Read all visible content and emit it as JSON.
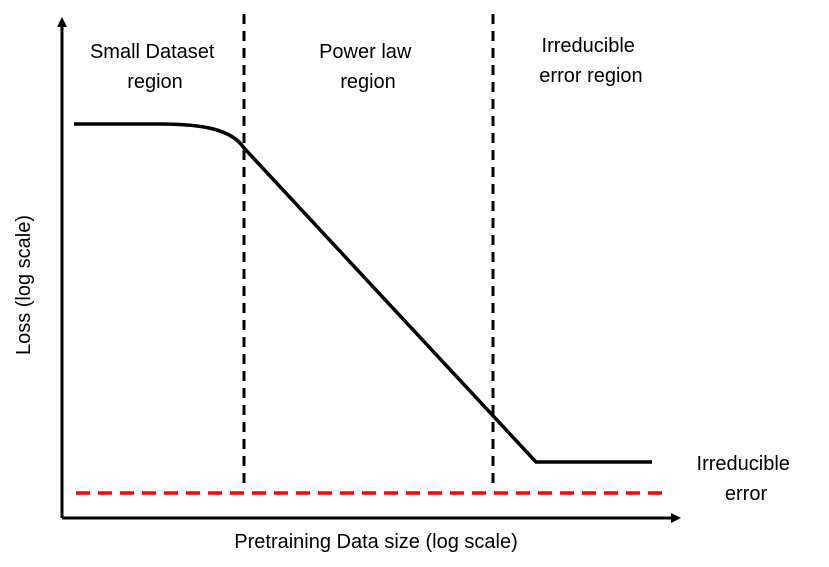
{
  "diagram": {
    "regions": [
      {
        "line1": "Small Dataset",
        "line2": "region"
      },
      {
        "line1": "Power law",
        "line2": "region"
      },
      {
        "line1": "Irreducible",
        "line2": "error region"
      }
    ],
    "irreducible_label": {
      "line1": "Irreducible",
      "line2": "error"
    },
    "xlabel": "Pretraining Data size (log scale)",
    "ylabel": "Loss (log scale)"
  },
  "colors": {
    "curve": "#000000",
    "axes": "#000000",
    "boundaries": "#000000",
    "irreducible_error_line": "#ff0000"
  }
}
